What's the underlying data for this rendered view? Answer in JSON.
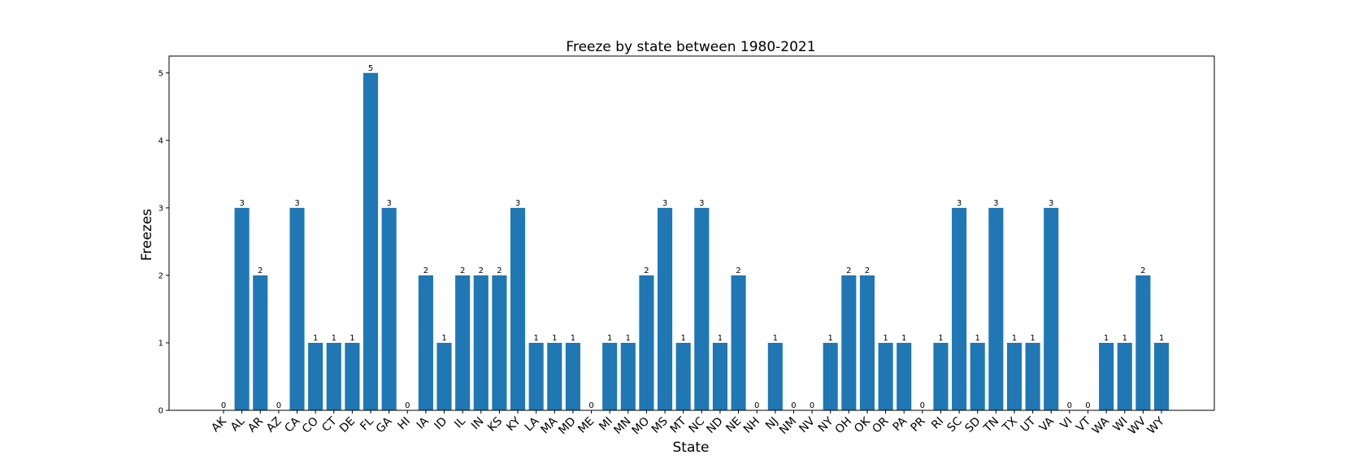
{
  "chart_data": {
    "type": "bar",
    "title": "Freeze by state between 1980-2021",
    "xlabel": "State",
    "ylabel": "Freezes",
    "categories": [
      "AK",
      "AL",
      "AR",
      "AZ",
      "CA",
      "CO",
      "CT",
      "DE",
      "FL",
      "GA",
      "HI",
      "IA",
      "ID",
      "IL",
      "IN",
      "KS",
      "KY",
      "LA",
      "MA",
      "MD",
      "ME",
      "MI",
      "MN",
      "MO",
      "MS",
      "MT",
      "NC",
      "ND",
      "NE",
      "NH",
      "NJ",
      "NM",
      "NV",
      "NY",
      "OH",
      "OK",
      "OR",
      "PA",
      "PR",
      "RI",
      "SC",
      "SD",
      "TN",
      "TX",
      "UT",
      "VA",
      "VI",
      "VT",
      "WA",
      "WI",
      "WV",
      "WY"
    ],
    "values": [
      0,
      3,
      2,
      0,
      3,
      1,
      1,
      1,
      5,
      3,
      0,
      2,
      1,
      2,
      2,
      2,
      3,
      1,
      1,
      1,
      0,
      1,
      1,
      2,
      3,
      1,
      3,
      1,
      2,
      0,
      1,
      0,
      0,
      1,
      2,
      2,
      1,
      1,
      0,
      1,
      3,
      1,
      3,
      1,
      1,
      3,
      0,
      0,
      1,
      1,
      2,
      1
    ],
    "ylim": [
      0,
      5.25
    ],
    "yticks": [
      0,
      1,
      2,
      3,
      4,
      5
    ],
    "bar_color": "#1f77b4",
    "data_labels": true,
    "grid": false
  }
}
